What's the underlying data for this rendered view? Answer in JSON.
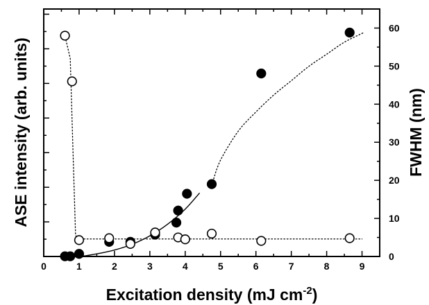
{
  "chart_data": {
    "type": "scatter",
    "xlabel_main": "Excitation density (mJ cm",
    "xlabel_sup": "-2",
    "xlabel_close": ")",
    "ylabel_left": "ASE intensity (arb. units)",
    "ylabel_right": "FWHM (nm)",
    "xlim": [
      0,
      9.5
    ],
    "ylim_right": [
      0,
      65
    ],
    "x_ticks": [
      "0",
      "1",
      "2",
      "3",
      "4",
      "5",
      "6",
      "7",
      "8",
      "9"
    ],
    "y_right_ticks": [
      "0",
      "10",
      "20",
      "30",
      "40",
      "50",
      "60"
    ],
    "left_axis_tick_labels": "none",
    "series": [
      {
        "axis": "left",
        "marker": "filled-circle",
        "x": [
          0.6,
          0.75,
          1.0,
          1.85,
          2.45,
          3.15,
          3.75,
          3.8,
          4.05,
          4.75,
          6.15,
          8.65
        ],
        "y": [
          0.07,
          0.07,
          0.08,
          0.13,
          0.13,
          0.16,
          0.21,
          0.26,
          0.33,
          0.37,
          0.83,
          1.0
        ]
      },
      {
        "axis": "right",
        "marker": "open-circle",
        "x": [
          0.6,
          0.8,
          1.0,
          1.85,
          2.45,
          3.15,
          3.8,
          4.0,
          4.75,
          6.15,
          8.65
        ],
        "y": [
          58,
          46,
          4.3,
          4.8,
          3.3,
          6.3,
          5.0,
          4.5,
          6.0,
          4.1,
          4.8
        ]
      }
    ],
    "fits": [
      {
        "axis": "left",
        "style": "solid",
        "x": [
          0.6,
          1.0,
          1.5,
          2.0,
          2.5,
          3.0,
          3.5,
          4.0,
          4.4
        ],
        "y": [
          0.067,
          0.069,
          0.08,
          0.096,
          0.12,
          0.155,
          0.203,
          0.266,
          0.332
        ]
      },
      {
        "axis": "left",
        "style": "dotted",
        "x": [
          4.78,
          5.0,
          5.5,
          6.0,
          6.5,
          7.0,
          7.5,
          8.0,
          8.5,
          9.05
        ],
        "y": [
          0.38,
          0.47,
          0.59,
          0.67,
          0.74,
          0.8,
          0.86,
          0.91,
          0.96,
          1.0
        ]
      },
      {
        "axis": "right",
        "style": "dotted",
        "x": [
          0.55,
          0.6,
          0.75,
          0.82,
          0.9,
          1.0,
          3.0,
          6.0,
          9.0
        ],
        "y": [
          58,
          58,
          52,
          30,
          5.5,
          4.6,
          4.6,
          4.6,
          4.6
        ]
      }
    ]
  }
}
